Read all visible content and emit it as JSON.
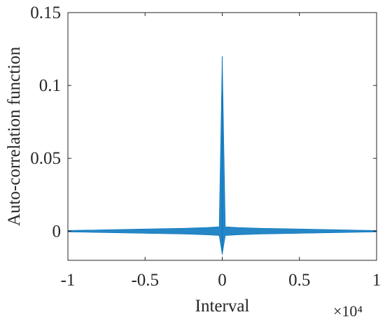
{
  "chart_data": {
    "type": "line",
    "title": "",
    "xlabel": "Interval",
    "ylabel": "Auto-correlation function",
    "x_multiplier_label": "×10⁴",
    "xlim": [
      -1,
      1
    ],
    "ylim": [
      -0.02,
      0.15
    ],
    "x_ticks": [
      -1,
      -0.5,
      0,
      0.5,
      1
    ],
    "x_tick_labels": [
      "-1",
      "-0.5",
      "0",
      "0.5",
      "1"
    ],
    "y_ticks": [
      0,
      0.05,
      0.1,
      0.15
    ],
    "y_tick_labels": [
      "0",
      "0.05",
      "0.1",
      "0.15"
    ],
    "grid": false,
    "series": [
      {
        "color": "#0072BD",
        "x": [
          -1,
          -0.75,
          -0.5,
          -0.25,
          -0.1,
          -0.02,
          0,
          0.02,
          0.1,
          0.25,
          0.5,
          0.75,
          1
        ],
        "y_upper": [
          0.0005,
          0.001,
          0.0015,
          0.002,
          0.0025,
          0.003,
          0.12,
          0.003,
          0.0025,
          0.002,
          0.0015,
          0.001,
          0.0005
        ],
        "y_lower": [
          -0.0005,
          -0.001,
          -0.0015,
          -0.002,
          -0.0025,
          -0.003,
          -0.016,
          -0.003,
          -0.0025,
          -0.002,
          -0.0015,
          -0.001,
          -0.0005
        ]
      }
    ]
  }
}
